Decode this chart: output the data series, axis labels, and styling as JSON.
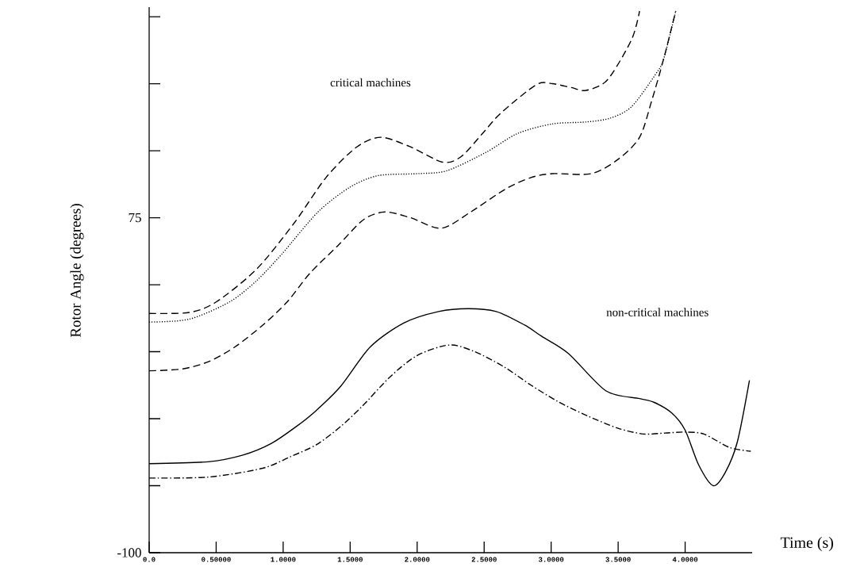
{
  "chart_data": {
    "type": "line",
    "xlabel": "Time (s)",
    "ylabel": "Rotor Angle  (degrees)",
    "xlim": [
      0,
      4.5
    ],
    "ylim": [
      -100,
      185
    ],
    "xticks": [
      {
        "value": 0,
        "label": "0.0"
      },
      {
        "value": 0.5,
        "label": "0.50000"
      },
      {
        "value": 1,
        "label": "1.0000"
      },
      {
        "value": 1.5,
        "label": "1.5000"
      },
      {
        "value": 2,
        "label": "2.0000"
      },
      {
        "value": 2.5,
        "label": "2.5000"
      },
      {
        "value": 3,
        "label": "3.0000"
      },
      {
        "value": 3.5,
        "label": "3.5000"
      },
      {
        "value": 4,
        "label": "4.0000"
      }
    ],
    "yticks": [
      {
        "value": -100,
        "label": "-100"
      },
      {
        "value": -65,
        "label": null
      },
      {
        "value": -30,
        "label": null
      },
      {
        "value": 5,
        "label": null
      },
      {
        "value": 40,
        "label": null
      },
      {
        "value": 75,
        "label": "75"
      },
      {
        "value": 110,
        "label": null
      },
      {
        "value": 145,
        "label": null
      },
      {
        "value": 180,
        "label": null
      }
    ],
    "grid": false,
    "series": [
      {
        "color": "#000000",
        "line_style": "dashed",
        "x": [
          0,
          0.3,
          0.5,
          0.8,
          1.08,
          1.32,
          1.55,
          1.73,
          1.95,
          2.19,
          2.33,
          2.5,
          2.63,
          2.89,
          3.01,
          3.15,
          3.26,
          3.42,
          3.6,
          3.66
        ],
        "values": [
          25,
          25.5,
          31,
          48,
          72,
          96,
          112,
          117,
          112,
          104,
          107,
          120,
          130,
          144.5,
          145,
          143,
          141.5,
          147,
          168,
          183
        ]
      },
      {
        "color": "#000000",
        "line_style": "dotted",
        "x": [
          0,
          0.3,
          0.6,
          0.8,
          0.99,
          1.26,
          1.5,
          1.71,
          2.0,
          2.22,
          2.51,
          2.75,
          3.01,
          3.26,
          3.44,
          3.6,
          3.78,
          3.84,
          3.93
        ],
        "values": [
          20.5,
          22,
          31,
          42,
          56,
          78,
          91,
          97,
          98,
          99.5,
          109,
          119,
          124,
          125,
          127,
          133,
          150,
          158,
          183
        ]
      },
      {
        "color": "#000000",
        "line_style": "dashed",
        "x": [
          0,
          0.25,
          0.45,
          0.64,
          0.85,
          1.03,
          1.2,
          1.41,
          1.6,
          1.76,
          1.95,
          2.18,
          2.4,
          2.66,
          2.85,
          3.01,
          3.3,
          3.5,
          3.66,
          3.75,
          3.84,
          3.93
        ],
        "values": [
          -5,
          -4,
          0,
          7.5,
          19,
          31,
          46,
          60.5,
          74,
          78,
          75,
          69.5,
          78,
          90,
          96,
          98,
          98,
          105.5,
          117,
          136,
          158,
          183
        ]
      },
      {
        "color": "#000000",
        "line_style": "solid",
        "x": [
          0,
          0.44,
          0.7,
          0.91,
          1.1,
          1.25,
          1.43,
          1.65,
          1.9,
          2.16,
          2.38,
          2.59,
          2.8,
          2.93,
          3.13,
          3.41,
          3.66,
          3.77,
          3.9,
          4.0,
          4.1,
          4.21,
          4.3,
          4.39,
          4.48
        ],
        "values": [
          -53.5,
          -52.5,
          -49,
          -43,
          -34,
          -25.5,
          -13,
          7.5,
          20,
          26,
          27.5,
          26,
          19,
          13,
          4,
          -15.5,
          -19.5,
          -21.5,
          -27,
          -36,
          -54,
          -65,
          -58,
          -42,
          -10
        ]
      },
      {
        "color": "#000000",
        "line_style": "dashdot",
        "x": [
          0,
          0.44,
          0.84,
          1.05,
          1.25,
          1.43,
          1.59,
          1.8,
          2.0,
          2.24,
          2.43,
          2.65,
          2.85,
          3.05,
          3.27,
          3.5,
          3.69,
          3.85,
          4.0,
          4.14,
          4.33,
          4.49
        ],
        "values": [
          -61,
          -60.5,
          -56,
          -50,
          -43.5,
          -34,
          -23.5,
          -8,
          3,
          8.5,
          5,
          -3,
          -12.5,
          -21,
          -28.5,
          -35,
          -38,
          -37.5,
          -37,
          -38,
          -45,
          -47
        ]
      }
    ],
    "annotations": [
      "critical machines",
      "non-critical machines"
    ]
  }
}
